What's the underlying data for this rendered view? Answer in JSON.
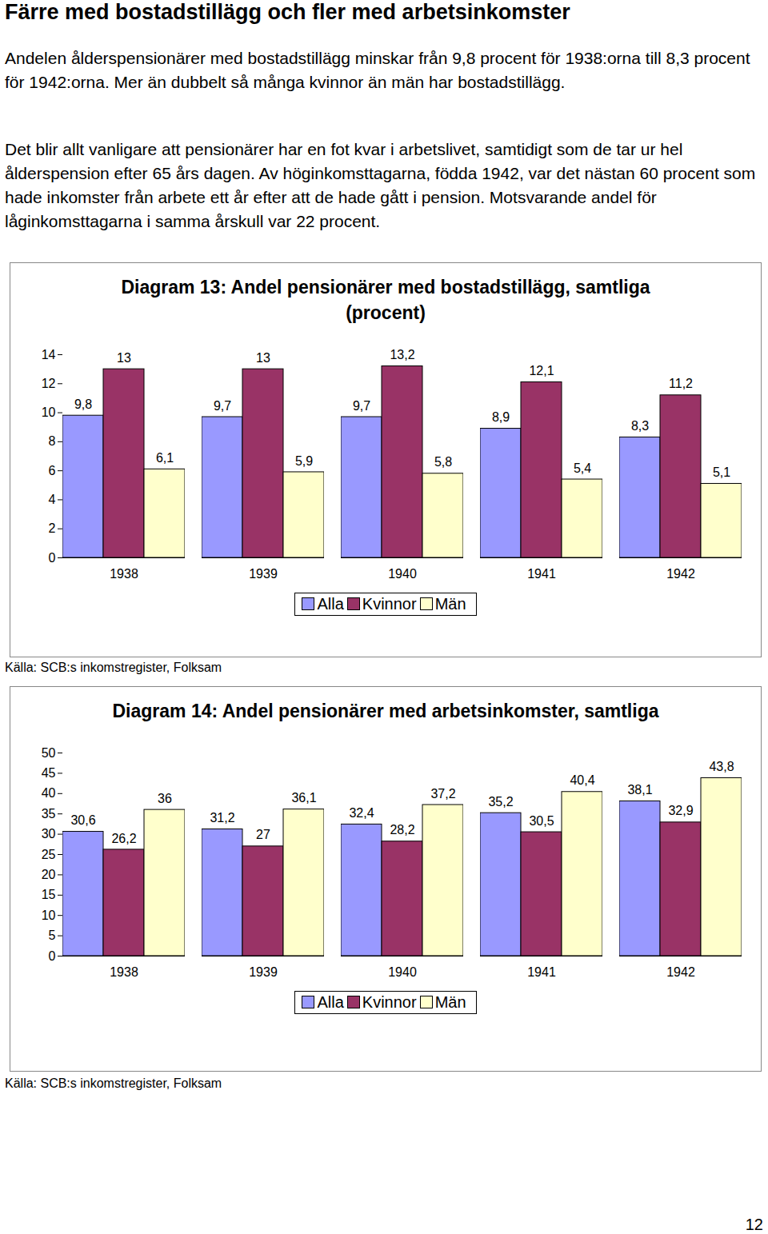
{
  "document": {
    "heading": "Färre med bostadstillägg och fler med arbetsinkomster",
    "paragraphs": [
      "Andelen ålderspensionärer med bostadstillägg minskar från 9,8 procent för 1938:orna till 8,3 procent för 1942:orna. Mer än dubbelt så många kvinnor än män har bostadstillägg.",
      "Det blir allt vanligare att pensionärer har en fot kvar i arbetslivet, samtidigt som de tar ur hel ålderspension efter 65 års dagen. Av höginkomsttagarna, födda 1942, var det nästan 60 procent som hade inkomster från arbete ett år efter att de hade gått i pension. Motsvarande andel för låginkomsttagarna i samma årskull var 22 procent."
    ],
    "page_number": "12"
  },
  "chart_data": [
    {
      "type": "bar",
      "title": "Diagram 13: Andel pensionärer med bostadstillägg, samtliga (procent)",
      "source": "Källa: SCB:s inkomstregister, Folksam",
      "categories": [
        "1938",
        "1939",
        "1940",
        "1941",
        "1942"
      ],
      "series": [
        {
          "name": "Alla",
          "color": "#9999ff",
          "values": [
            9.8,
            9.7,
            9.7,
            8.9,
            8.3
          ],
          "value_labels": [
            "9,8",
            "9,7",
            "9,7",
            "8,9",
            "8,3"
          ]
        },
        {
          "name": "Kvinnor",
          "color": "#993366",
          "values": [
            13,
            13,
            13.2,
            12.1,
            11.2
          ],
          "value_labels": [
            "13",
            "13",
            "13,2",
            "12,1",
            "11,2"
          ]
        },
        {
          "name": "Män",
          "color": "#ffffcc",
          "values": [
            6.1,
            5.9,
            5.8,
            5.4,
            5.1
          ],
          "value_labels": [
            "6,1",
            "5,9",
            "5,8",
            "5,4",
            "5,1"
          ]
        }
      ],
      "ylim": [
        0,
        14
      ],
      "yticks": [
        0,
        2,
        4,
        6,
        8,
        10,
        12,
        14
      ],
      "grid": false,
      "data_labels": true,
      "legend": "bottom"
    },
    {
      "type": "bar",
      "title": "Diagram 14: Andel pensionärer med arbetsinkomster, samtliga",
      "source": "Källa: SCB:s inkomstregister, Folksam",
      "categories": [
        "1938",
        "1939",
        "1940",
        "1941",
        "1942"
      ],
      "series": [
        {
          "name": "Alla",
          "color": "#9999ff",
          "values": [
            30.6,
            31.2,
            32.4,
            35.2,
            38.1
          ],
          "value_labels": [
            "30,6",
            "31,2",
            "32,4",
            "35,2",
            "38,1"
          ]
        },
        {
          "name": "Kvinnor",
          "color": "#993366",
          "values": [
            26.2,
            27,
            28.2,
            30.5,
            32.9
          ],
          "value_labels": [
            "26,2",
            "27",
            "28,2",
            "30,5",
            "32,9"
          ]
        },
        {
          "name": "Män",
          "color": "#ffffcc",
          "values": [
            36,
            36.1,
            37.2,
            40.4,
            43.8
          ],
          "value_labels": [
            "36",
            "36,1",
            "37,2",
            "40,4",
            "43,8"
          ]
        }
      ],
      "ylim": [
        0,
        50
      ],
      "yticks": [
        0,
        5,
        10,
        15,
        20,
        25,
        30,
        35,
        40,
        45,
        50
      ],
      "grid": false,
      "data_labels": true,
      "legend": "bottom"
    }
  ]
}
